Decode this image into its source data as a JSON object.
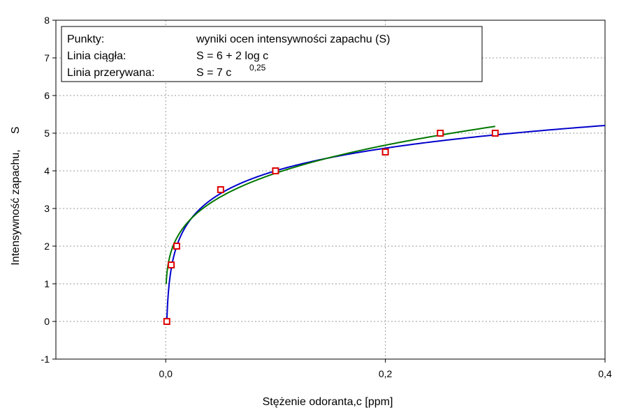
{
  "chart_data": {
    "type": "scatter",
    "xlabel": "Stężenie odoranta,c [ppm]",
    "ylabel": "Intensywność zapachu,     S",
    "xlim": [
      -0.1,
      0.4
    ],
    "ylim": [
      -1,
      8
    ],
    "x_ticks": [
      0.0,
      0.2,
      0.4
    ],
    "x_tick_labels": [
      "0,0",
      "0,2",
      "0,4"
    ],
    "y_ticks": [
      -1,
      0,
      1,
      2,
      3,
      4,
      5,
      6,
      7,
      8
    ],
    "y_tick_labels": [
      "-1",
      "0",
      "1",
      "2",
      "3",
      "4",
      "5",
      "6",
      "7",
      "8"
    ],
    "grid": true,
    "legend_position": "top-left",
    "legend": {
      "row1_label": "Punkty:",
      "row1_value": "wyniki ocen intensywności zapachu (S)",
      "row2_label": "Linia ciągła:",
      "row2_value": "S =  6 + 2  log c",
      "row3_label": "Linia przerywana:",
      "row3_value": "S  = 7 c",
      "row3_exponent": "0,25"
    },
    "series": [
      {
        "kind": "points",
        "marker": "square",
        "color": "#dd0000",
        "x": [
          0.001,
          0.005,
          0.01,
          0.05,
          0.1,
          0.2,
          0.25,
          0.3
        ],
        "y": [
          0.0,
          1.5,
          2.0,
          3.5,
          4.0,
          4.5,
          5.0,
          5.0
        ]
      },
      {
        "kind": "line",
        "color": "#0000cc",
        "formula": "log",
        "x_range": [
          0.001,
          0.4
        ]
      },
      {
        "kind": "line",
        "color": "#007700",
        "formula": "power",
        "x_range": [
          0.0004,
          0.3
        ]
      }
    ]
  }
}
